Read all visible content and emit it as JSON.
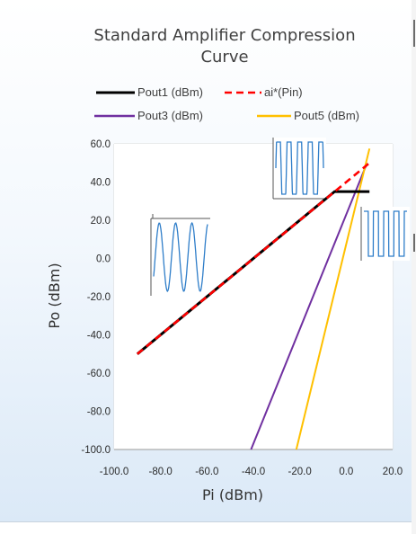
{
  "chart_data": {
    "type": "line",
    "title": "Standard Amplifier Compression",
    "title_line2": "Curve",
    "xlabel": "Pi (dBm)",
    "ylabel": "Po (dBm)",
    "xlim": [
      -100,
      20
    ],
    "ylim": [
      -100,
      60
    ],
    "xticks": [
      -100,
      -80,
      -60,
      -40,
      -20,
      0,
      20
    ],
    "yticks": [
      -100,
      -80,
      -60,
      -40,
      -20,
      0,
      20,
      40,
      60
    ],
    "xtick_labels": [
      "-100.0",
      "-80.0",
      "-60.0",
      "-40.0",
      "-20.0",
      "0.0",
      "20.0"
    ],
    "ytick_labels": [
      "-100.0",
      "-80.0",
      "-60.0",
      "-40.0",
      "-20.0",
      "0.0",
      "20.0",
      "40.0",
      "60.0"
    ],
    "grid": true,
    "legend_position": "top",
    "series": [
      {
        "name": "Pout1 (dBm)",
        "color": "#000000",
        "dash": "solid",
        "x": [
          -90,
          -5,
          0,
          10
        ],
        "y": [
          -50,
          35,
          35,
          35
        ]
      },
      {
        "name": "ai*(Pin)",
        "color": "#ff0000",
        "dash": "dash",
        "x": [
          -90,
          10
        ],
        "y": [
          -50,
          50
        ]
      },
      {
        "name": "Pout3 (dBm)",
        "color": "#7030a0",
        "dash": "solid",
        "x": [
          -41,
          9
        ],
        "y": [
          -100,
          50
        ]
      },
      {
        "name": "Pout5 (dBm)",
        "color": "#ffc000",
        "dash": "solid",
        "x": [
          -21.5,
          10
        ],
        "y": [
          -100,
          57.5
        ]
      }
    ]
  }
}
